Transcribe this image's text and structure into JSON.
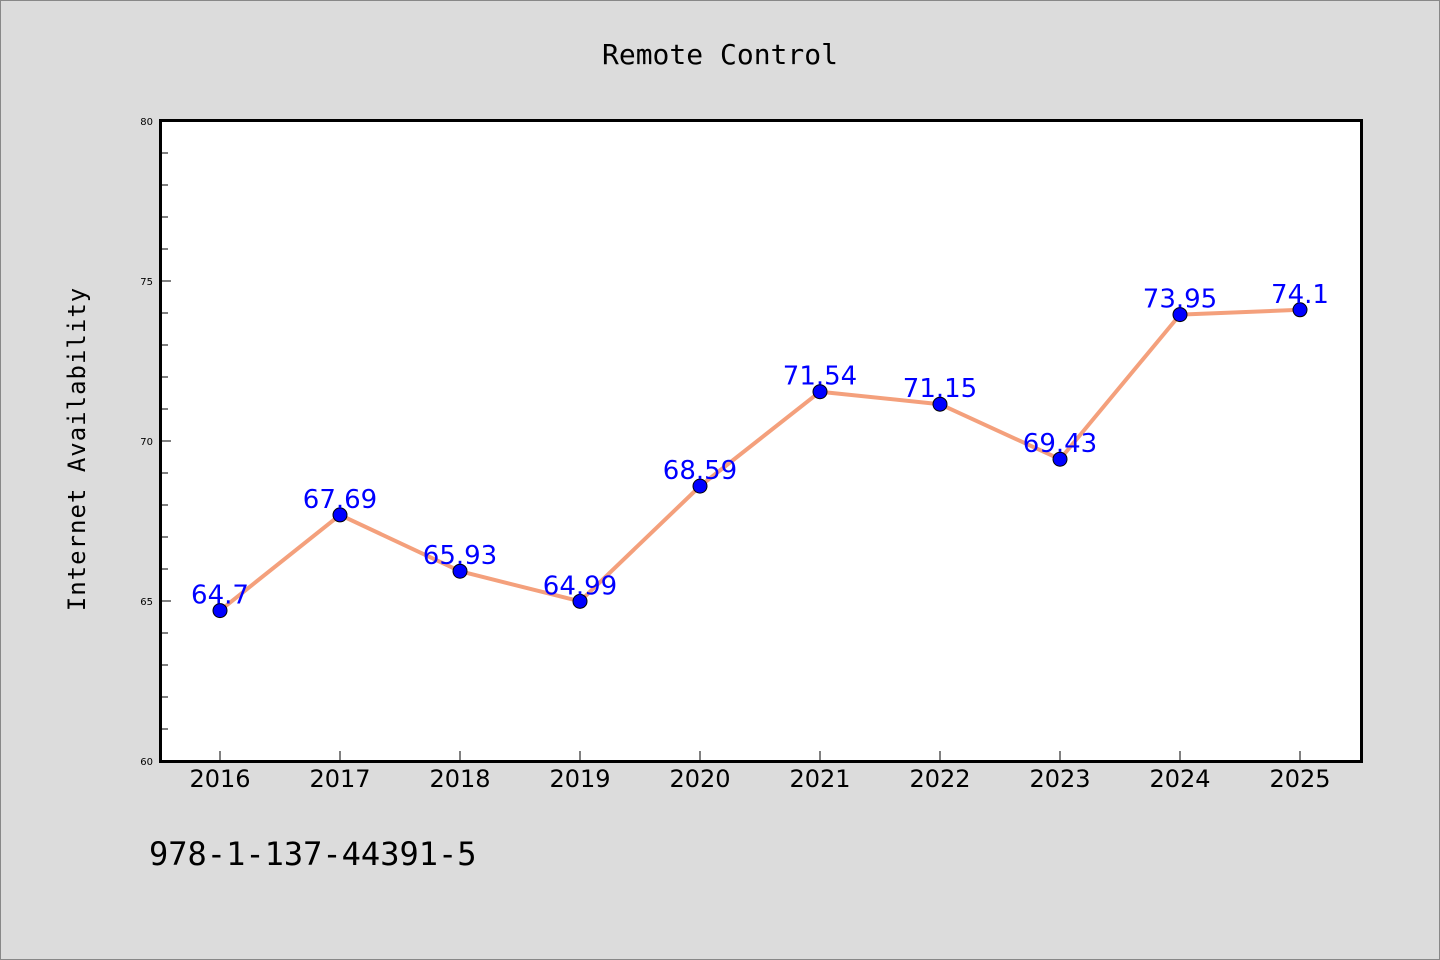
{
  "chart_data": {
    "type": "line",
    "title": "Remote Control",
    "xlabel": "",
    "ylabel": "Internet Availability",
    "categories": [
      "2016",
      "2017",
      "2018",
      "2019",
      "2020",
      "2021",
      "2022",
      "2023",
      "2024",
      "2025"
    ],
    "values": [
      64.7,
      67.69,
      65.93,
      64.99,
      68.59,
      71.54,
      71.15,
      69.43,
      73.95,
      74.1
    ],
    "data_labels": [
      "64.7",
      "67.69",
      "65.93",
      "64.99",
      "68.59",
      "71.54",
      "71.15",
      "69.43",
      "73.95",
      "74.1"
    ],
    "ylim": [
      60,
      80
    ],
    "yticks": [
      60,
      65,
      70,
      75,
      80
    ],
    "grid": false,
    "legend": "none",
    "line_color": "#f4a07c",
    "marker_color": "#0000ff",
    "label_color": "#0000ff"
  },
  "footnote": "978-1-137-44391-5"
}
